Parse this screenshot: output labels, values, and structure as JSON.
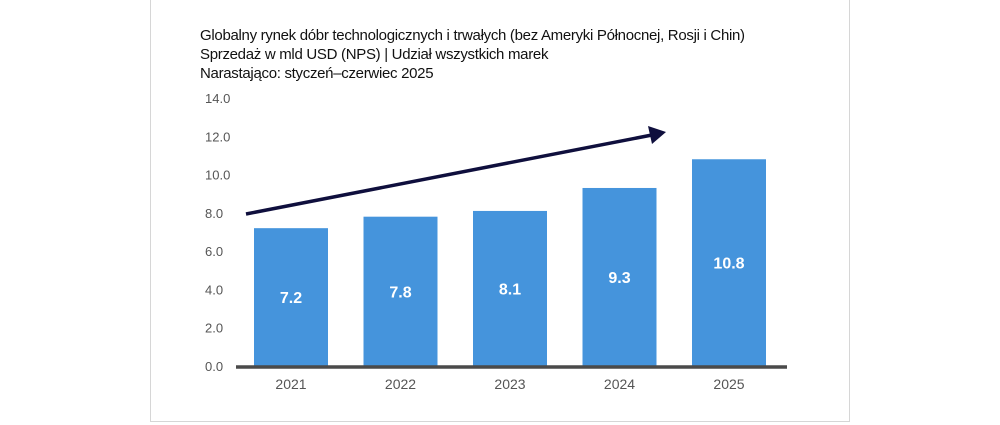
{
  "chart_data": {
    "type": "bar",
    "title": "Globalny rynek dóbr technologicznych i trwałych (bez Ameryki Północnej, Rosji i Chin)",
    "subtitle": "Sprzedaż w mld USD (NPS) | Udział wszystkich marek",
    "subtitle2": "Narastająco: styczeń–czerwiec 2025",
    "categories": [
      "2021",
      "2022",
      "2023",
      "2024",
      "2025"
    ],
    "values": [
      7.2,
      7.8,
      8.1,
      9.3,
      10.8
    ],
    "data_labels": [
      "7.2",
      "7.8",
      "8.1",
      "9.3",
      "10.8"
    ],
    "ylim": [
      0,
      14
    ],
    "yticks": [
      "0.0",
      "2.0",
      "4.0",
      "6.0",
      "8.0",
      "10.0",
      "12.0",
      "14.0"
    ],
    "grid": false,
    "annotation": "upward trend arrow",
    "colors": {
      "bar": "#4594dc",
      "arrow": "#0f0f3d",
      "axis": "#4a4a4a",
      "label": "#555555"
    }
  }
}
